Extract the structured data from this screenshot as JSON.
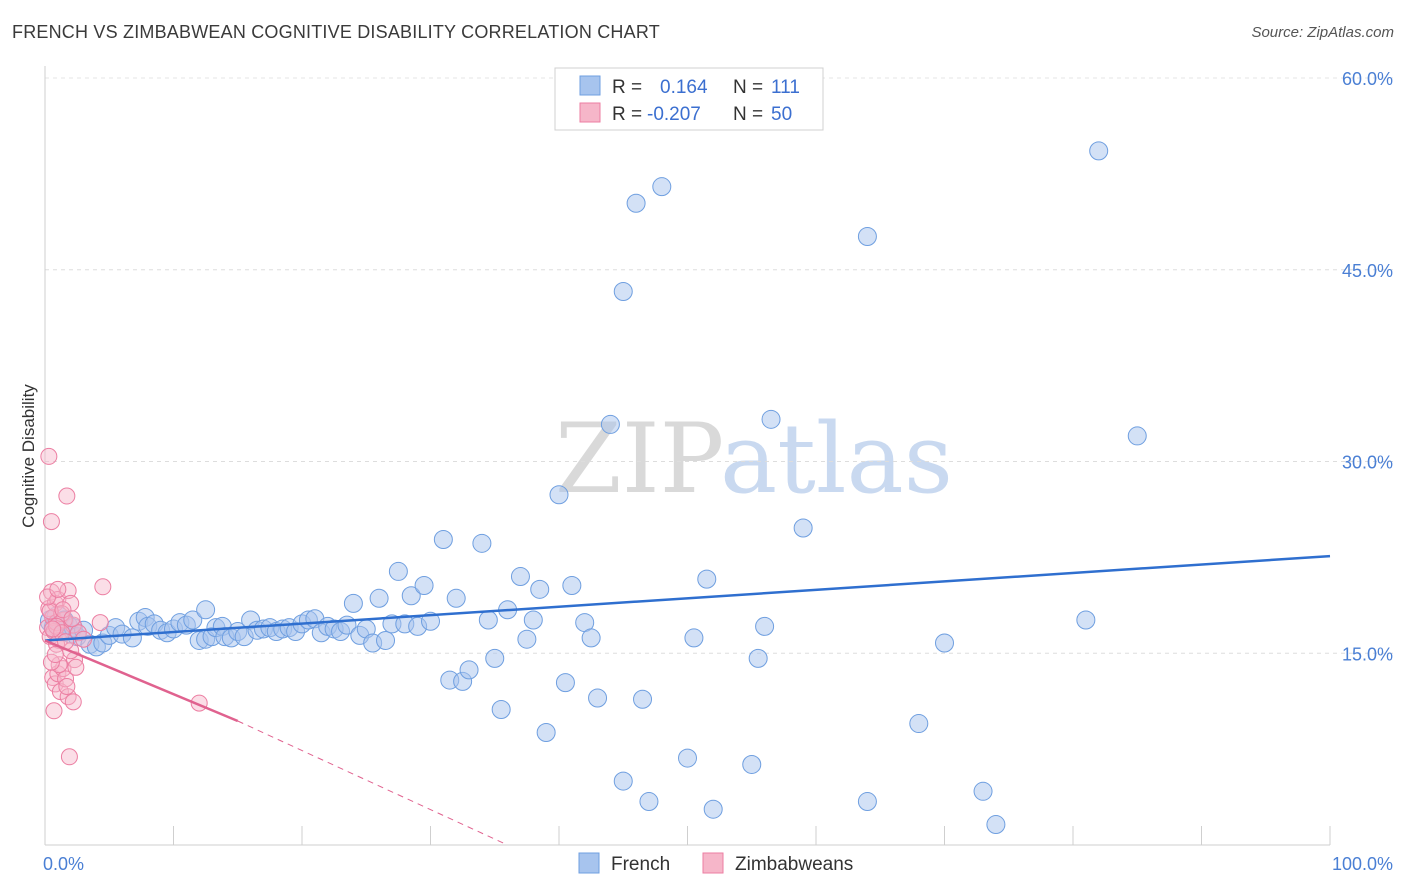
{
  "title": "FRENCH VS ZIMBABWEAN COGNITIVE DISABILITY CORRELATION CHART",
  "source": "Source: ZipAtlas.com",
  "watermark": {
    "zip": "ZIP",
    "atlas": "atlas"
  },
  "colors": {
    "french": "#a7c4ee",
    "french_stroke": "#6f9fe0",
    "french_line": "#2f6fcf",
    "zimbabwean": "#f6b6c9",
    "zimbabwean_stroke": "#ec7ea2",
    "zimbabwean_line": "#e0628f",
    "axis_text": "#4a7fd4"
  },
  "legend_top": {
    "rows": [
      {
        "r_label": "R =",
        "r_value": "0.164",
        "n_label": "N =",
        "n_value": "111"
      },
      {
        "r_label": "R =",
        "r_value": "-0.207",
        "n_label": "N =",
        "n_value": "50"
      }
    ]
  },
  "legend_bottom": {
    "french": "French",
    "zimbabweans": "Zimbabweans"
  },
  "chart_data": {
    "type": "scatter",
    "title": "FRENCH VS ZIMBABWEAN COGNITIVE DISABILITY CORRELATION CHART",
    "xlabel": "",
    "ylabel": "Cognitive Disability",
    "xlim": [
      0,
      100
    ],
    "ylim": [
      0,
      60
    ],
    "x_tick_labels": [
      "0.0%",
      "100.0%"
    ],
    "y_ticks": [
      15,
      30,
      45,
      60
    ],
    "y_tick_labels": [
      "15.0%",
      "30.0%",
      "45.0%",
      "60.0%"
    ],
    "grid": true,
    "legend_position": "top-center",
    "series": [
      {
        "name": "French",
        "R": 0.164,
        "N": 111,
        "trend": {
          "x": [
            0,
            100
          ],
          "y": [
            16.0,
            22.6
          ]
        },
        "points": [
          [
            0.5,
            17.5
          ],
          [
            0.8,
            17.0
          ],
          [
            1.0,
            17.8
          ],
          [
            1.2,
            16.8
          ],
          [
            1.5,
            17.6
          ],
          [
            1.8,
            17.2
          ],
          [
            2.0,
            16.5
          ],
          [
            2.2,
            17.0
          ],
          [
            2.5,
            16.3
          ],
          [
            3.0,
            16.8
          ],
          [
            3.5,
            15.7
          ],
          [
            4.0,
            15.5
          ],
          [
            4.5,
            15.8
          ],
          [
            5.0,
            16.4
          ],
          [
            5.5,
            17.0
          ],
          [
            6.0,
            16.5
          ],
          [
            6.8,
            16.2
          ],
          [
            7.3,
            17.5
          ],
          [
            7.8,
            17.8
          ],
          [
            8.0,
            17.1
          ],
          [
            8.5,
            17.3
          ],
          [
            9.0,
            16.8
          ],
          [
            9.5,
            16.6
          ],
          [
            10.0,
            16.9
          ],
          [
            10.5,
            17.4
          ],
          [
            11.0,
            17.2
          ],
          [
            11.5,
            17.6
          ],
          [
            12.0,
            16.0
          ],
          [
            12.5,
            16.1
          ],
          [
            12.5,
            18.4
          ],
          [
            13.0,
            16.3
          ],
          [
            13.3,
            17.0
          ],
          [
            13.8,
            17.1
          ],
          [
            14.0,
            16.3
          ],
          [
            14.5,
            16.2
          ],
          [
            15.0,
            16.7
          ],
          [
            15.5,
            16.3
          ],
          [
            16.0,
            17.6
          ],
          [
            16.5,
            16.8
          ],
          [
            17.0,
            16.9
          ],
          [
            17.5,
            17.0
          ],
          [
            18.0,
            16.7
          ],
          [
            18.5,
            16.9
          ],
          [
            19.0,
            17.0
          ],
          [
            19.5,
            16.7
          ],
          [
            20.0,
            17.3
          ],
          [
            20.5,
            17.6
          ],
          [
            21.0,
            17.7
          ],
          [
            21.5,
            16.6
          ],
          [
            22.0,
            17.1
          ],
          [
            22.5,
            16.9
          ],
          [
            23.0,
            16.7
          ],
          [
            23.5,
            17.2
          ],
          [
            24.0,
            18.9
          ],
          [
            24.5,
            16.4
          ],
          [
            25.0,
            16.9
          ],
          [
            25.5,
            15.8
          ],
          [
            26.0,
            19.3
          ],
          [
            26.5,
            16.0
          ],
          [
            27.0,
            17.3
          ],
          [
            27.5,
            21.4
          ],
          [
            28.0,
            17.3
          ],
          [
            28.5,
            19.5
          ],
          [
            29.0,
            17.1
          ],
          [
            29.5,
            20.3
          ],
          [
            30.0,
            17.5
          ],
          [
            31.0,
            23.9
          ],
          [
            31.5,
            12.9
          ],
          [
            32.0,
            19.3
          ],
          [
            32.5,
            12.8
          ],
          [
            33.0,
            13.7
          ],
          [
            34.0,
            23.6
          ],
          [
            34.5,
            17.6
          ],
          [
            35.0,
            14.6
          ],
          [
            35.5,
            10.6
          ],
          [
            36.0,
            18.4
          ],
          [
            37.0,
            21.0
          ],
          [
            37.5,
            16.1
          ],
          [
            38.0,
            17.6
          ],
          [
            38.5,
            20.0
          ],
          [
            39.0,
            8.8
          ],
          [
            40.0,
            27.4
          ],
          [
            40.5,
            12.7
          ],
          [
            41.0,
            20.3
          ],
          [
            42.0,
            17.4
          ],
          [
            42.5,
            16.2
          ],
          [
            43.0,
            11.5
          ],
          [
            44.0,
            32.9
          ],
          [
            45.0,
            43.3
          ],
          [
            45.0,
            5.0
          ],
          [
            46.0,
            50.2
          ],
          [
            46.5,
            11.4
          ],
          [
            47.0,
            3.4
          ],
          [
            48.0,
            51.5
          ],
          [
            50.0,
            6.8
          ],
          [
            50.5,
            16.2
          ],
          [
            51.5,
            20.8
          ],
          [
            52.0,
            2.8
          ],
          [
            55.0,
            6.3
          ],
          [
            55.5,
            14.6
          ],
          [
            56.0,
            17.1
          ],
          [
            56.5,
            33.3
          ],
          [
            59.0,
            24.8
          ],
          [
            64.0,
            3.4
          ],
          [
            64.0,
            47.6
          ],
          [
            68.0,
            9.5
          ],
          [
            70.0,
            15.8
          ],
          [
            73.0,
            4.2
          ],
          [
            74.0,
            1.6
          ],
          [
            81.0,
            17.6
          ],
          [
            82.0,
            54.3
          ],
          [
            85.0,
            32.0
          ]
        ]
      },
      {
        "name": "Zimbabweans",
        "R": -0.207,
        "N": 50,
        "trend": {
          "x": [
            0,
            15
          ],
          "y": [
            16.0,
            9.7
          ]
        },
        "trend_dashed": {
          "x": [
            15,
            36
          ],
          "y": [
            9.7,
            0.0
          ]
        },
        "points": [
          [
            0.2,
            17.0
          ],
          [
            0.3,
            18.5
          ],
          [
            0.4,
            16.3
          ],
          [
            0.5,
            19.8
          ],
          [
            0.6,
            17.8
          ],
          [
            0.7,
            16.7
          ],
          [
            0.8,
            18.9
          ],
          [
            0.9,
            17.4
          ],
          [
            1.0,
            19.2
          ],
          [
            1.1,
            16.0
          ],
          [
            0.3,
            30.4
          ],
          [
            0.5,
            25.3
          ],
          [
            1.7,
            27.3
          ],
          [
            4.5,
            20.2
          ],
          [
            1.8,
            19.9
          ],
          [
            2.0,
            18.9
          ],
          [
            2.2,
            17.2
          ],
          [
            1.5,
            17.6
          ],
          [
            1.3,
            18.1
          ],
          [
            0.6,
            13.1
          ],
          [
            0.8,
            12.6
          ],
          [
            1.0,
            13.4
          ],
          [
            1.2,
            12.0
          ],
          [
            1.4,
            13.8
          ],
          [
            1.6,
            13.0
          ],
          [
            1.8,
            11.6
          ],
          [
            2.2,
            11.2
          ],
          [
            0.7,
            10.5
          ],
          [
            1.9,
            6.9
          ],
          [
            12.0,
            11.1
          ],
          [
            2.3,
            14.5
          ],
          [
            2.0,
            15.2
          ],
          [
            1.1,
            14.1
          ],
          [
            0.9,
            15.7
          ],
          [
            0.5,
            14.3
          ],
          [
            2.6,
            16.6
          ],
          [
            3.0,
            16.1
          ],
          [
            4.3,
            17.4
          ],
          [
            0.4,
            18.3
          ],
          [
            0.9,
            17.1
          ],
          [
            1.3,
            16.6
          ],
          [
            1.6,
            15.9
          ],
          [
            0.6,
            16.9
          ],
          [
            1.4,
            18.4
          ],
          [
            2.1,
            17.7
          ],
          [
            0.2,
            19.4
          ],
          [
            1.0,
            20.0
          ],
          [
            1.7,
            12.4
          ],
          [
            2.4,
            13.9
          ],
          [
            0.8,
            14.9
          ]
        ]
      }
    ]
  }
}
